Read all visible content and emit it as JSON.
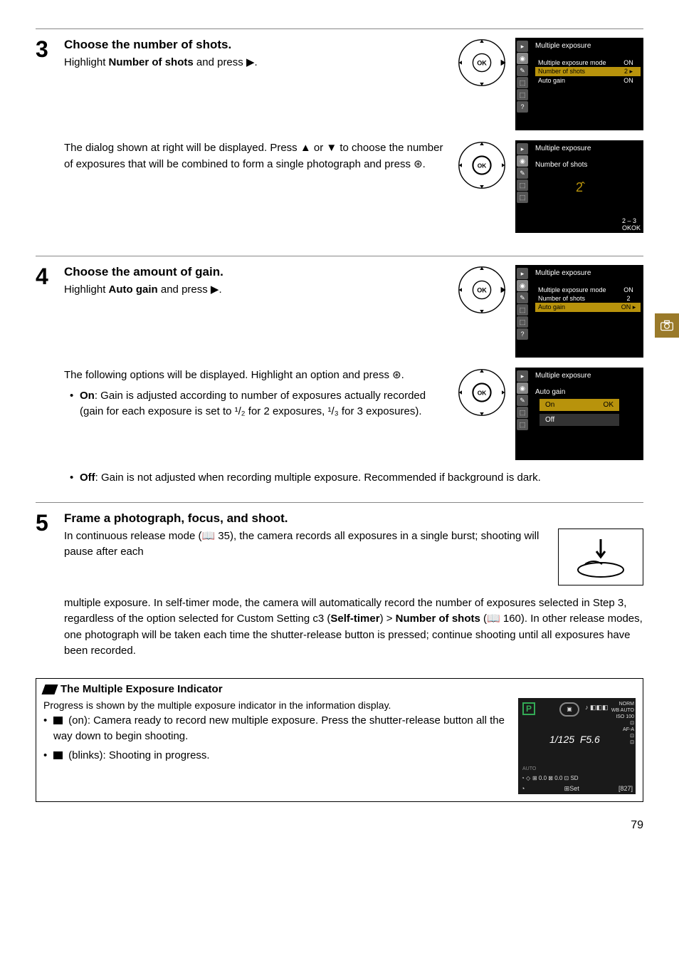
{
  "page_number": "79",
  "side_tab": {
    "bg_color": "#9a7a2a"
  },
  "steps": {
    "s3": {
      "number": "3",
      "title": "Choose the number of shots.",
      "line1_a": "Highlight ",
      "line1_b": "Number of shots",
      "line1_c": " and press ▶.",
      "para2": "The dialog shown at right will be displayed. Press ▲ or ▼ to choose the number of exposures that will be combined to form a single photograph and press ⊛."
    },
    "s4": {
      "number": "4",
      "title": "Choose the amount of gain.",
      "line1_a": "Highlight ",
      "line1_b": "Auto gain",
      "line1_c": " and press ▶.",
      "para2": "The following options will be displayed. Highlight an option and press ⊛.",
      "bullet_on_label": "On",
      "bullet_on_text": ": Gain is adjusted according to number of exposures actually recorded (gain for each exposure is set to ¹/₂ for 2 exposures, ¹/₃ for 3 exposures).",
      "bullet_off_label": "Off",
      "bullet_off_text": ": Gain is not adjusted when recording multiple exposure.  Recommended if background is dark."
    },
    "s5": {
      "number": "5",
      "title": "Frame a photograph, focus, and shoot.",
      "text_a": "In continuous release mode (📖 35), the camera records all exposures in a single burst; shooting will pause after each",
      "text_b": "multiple exposure. In self-timer mode, the camera will automatically record the number of exposures selected in Step 3, regardless of the option selected for Custom Setting c3 (",
      "b1": "Self-timer",
      "mid": ") > ",
      "b2": "Number of shots",
      "text_c": " (📖 160).  In other release modes, one photograph will be taken each time the shutter-release button is pressed; continue shooting until all exposures have been recorded."
    }
  },
  "screens": {
    "s3a": {
      "title": "Multiple exposure",
      "rows": [
        {
          "label": "Multiple exposure mode",
          "val": "ON",
          "hl_row": false
        },
        {
          "label": "Number of shots",
          "val": "2 ▸",
          "hl_row": true
        },
        {
          "label": "Auto gain",
          "val": "ON",
          "hl_row": false
        }
      ]
    },
    "s3b": {
      "title": "Multiple exposure",
      "subtitle": "Number of shots",
      "center": "2̂",
      "footer1": "2 – 3",
      "footer2": "OKOK"
    },
    "s4a": {
      "title": "Multiple exposure",
      "rows": [
        {
          "label": "Multiple exposure mode",
          "val": "ON",
          "hl_row": false
        },
        {
          "label": "Number of shots",
          "val": "2",
          "hl_row": false
        },
        {
          "label": "Auto gain",
          "val": "ON ▸",
          "hl_row": true
        }
      ]
    },
    "s4b": {
      "title": "Multiple exposure",
      "subtitle": "Auto gain",
      "opts": [
        {
          "label": "On",
          "sel": true,
          "badge": "OK"
        },
        {
          "label": "Off",
          "sel": false,
          "badge": ""
        }
      ]
    }
  },
  "box": {
    "title": "The Multiple Exposure Indicator",
    "intro": "Progress is shown by the multiple exposure indicator in the information display.",
    "b1": " (on): Camera ready to record new multiple exposure. Press the shutter-release button all the way down to begin shooting.",
    "b2": " (blinks): Shooting in progress."
  },
  "info": {
    "p": "P",
    "shutter": "1/125",
    "fstop": "F5.6",
    "set": "⊞Set",
    "count": "[827]",
    "norm": "NORM",
    "wb": "WB AUTO",
    "iso": "ISO 100",
    "af": "AF-A",
    "bar": "⊞ 0.0 ⊠ 0.0 ⊡ SD",
    "auto": "AUTO"
  },
  "colors": {
    "highlight": "#b8930c",
    "screen_bg": "#000000",
    "green": "#3a5"
  },
  "ok_button": {
    "stroke": "#000"
  }
}
